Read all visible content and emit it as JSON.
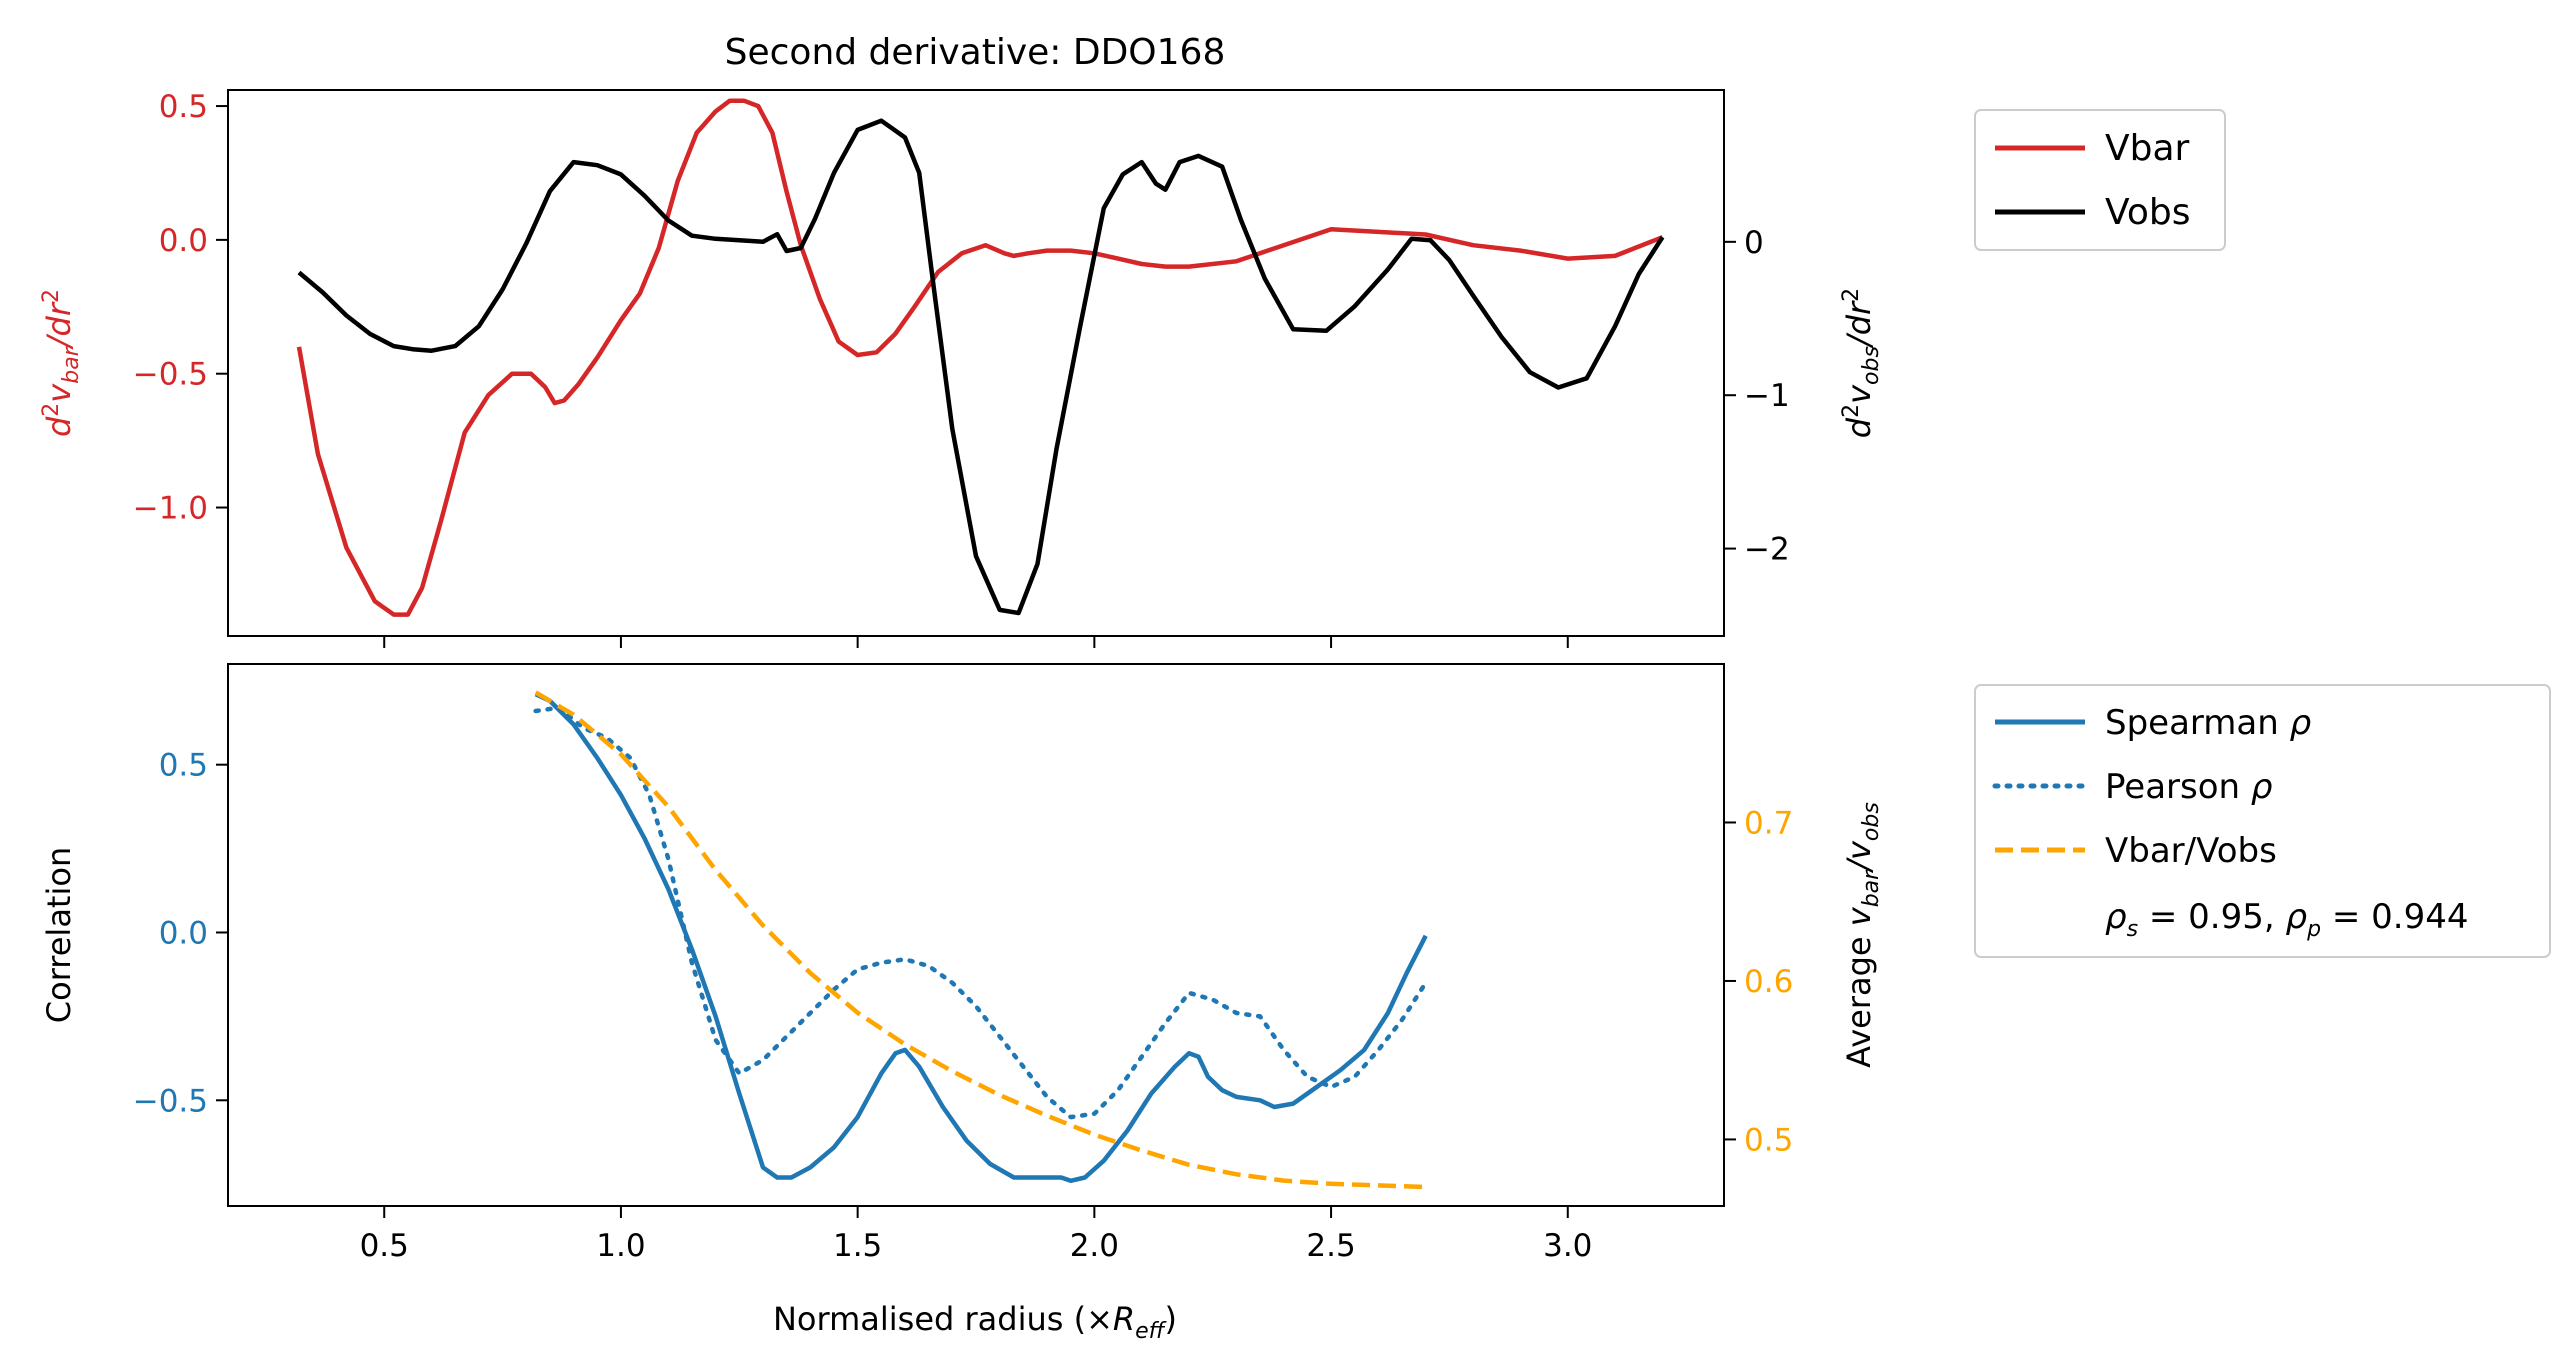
{
  "figure": {
    "title": "Second derivative: DDO168",
    "xlabel": "Normalised radius (×",
    "xlabel_sub": "R",
    "xlabel_subscript": "eff",
    "xlabel_close": ")",
    "colors": {
      "vbar": "#d62728",
      "vobs": "#000000",
      "spearman": "#1f77b4",
      "pearson": "#1f77b4",
      "ratio": "#ffa500",
      "axis": "#000000"
    }
  },
  "chart_data": [
    {
      "type": "line",
      "title": "Second derivative: DDO168",
      "xlim": [
        0.17,
        3.33
      ],
      "x_ticks": [
        0.5,
        1.0,
        1.5,
        2.0,
        2.5,
        3.0
      ],
      "left_axis": {
        "label": "d²v_bar/dr²",
        "color": "#d62728",
        "ylim": [
          -1.48,
          0.56
        ],
        "ticks": [
          0.5,
          0.0,
          -0.5,
          -1.0
        ],
        "tick_labels": [
          "0.5",
          "0.0",
          "−0.5",
          "−1.0"
        ]
      },
      "right_axis": {
        "label": "d²v_obs/dr²",
        "color": "#000000",
        "ylim": [
          -2.57,
          0.99
        ],
        "ticks": [
          0,
          -1,
          -2
        ],
        "tick_labels": [
          "0",
          "−1",
          "−2"
        ]
      },
      "legend": {
        "placement": "outside-top-right",
        "entries": [
          "Vbar",
          "Vobs"
        ]
      },
      "series": [
        {
          "name": "Vbar",
          "axis": "left",
          "color": "#d62728",
          "style": "solid",
          "x": [
            0.32,
            0.36,
            0.42,
            0.48,
            0.52,
            0.55,
            0.58,
            0.62,
            0.67,
            0.72,
            0.77,
            0.81,
            0.84,
            0.86,
            0.88,
            0.91,
            0.95,
            1.0,
            1.04,
            1.08,
            1.12,
            1.16,
            1.2,
            1.23,
            1.26,
            1.29,
            1.32,
            1.35,
            1.38,
            1.42,
            1.46,
            1.5,
            1.54,
            1.58,
            1.62,
            1.67,
            1.72,
            1.77,
            1.81,
            1.83,
            1.86,
            1.9,
            1.95,
            2.0,
            2.05,
            2.1,
            2.15,
            2.2,
            2.3,
            2.4,
            2.5,
            2.6,
            2.7,
            2.8,
            2.9,
            3.0,
            3.1,
            3.2
          ],
          "values": [
            -0.4,
            -0.8,
            -1.15,
            -1.35,
            -1.4,
            -1.4,
            -1.3,
            -1.05,
            -0.72,
            -0.58,
            -0.5,
            -0.5,
            -0.55,
            -0.61,
            -0.6,
            -0.54,
            -0.44,
            -0.3,
            -0.2,
            -0.03,
            0.22,
            0.4,
            0.48,
            0.52,
            0.52,
            0.5,
            0.4,
            0.18,
            -0.02,
            -0.22,
            -0.38,
            -0.43,
            -0.42,
            -0.35,
            -0.25,
            -0.12,
            -0.05,
            -0.02,
            -0.05,
            -0.06,
            -0.05,
            -0.04,
            -0.04,
            -0.05,
            -0.07,
            -0.09,
            -0.1,
            -0.1,
            -0.08,
            -0.02,
            0.04,
            0.03,
            0.02,
            -0.02,
            -0.04,
            -0.07,
            -0.06,
            0.01
          ]
        },
        {
          "name": "Vobs",
          "axis": "right",
          "color": "#000000",
          "style": "solid",
          "x": [
            0.32,
            0.37,
            0.42,
            0.47,
            0.52,
            0.56,
            0.6,
            0.65,
            0.7,
            0.75,
            0.8,
            0.85,
            0.9,
            0.95,
            1.0,
            1.05,
            1.1,
            1.15,
            1.2,
            1.25,
            1.3,
            1.33,
            1.35,
            1.38,
            1.41,
            1.45,
            1.5,
            1.55,
            1.6,
            1.63,
            1.66,
            1.7,
            1.75,
            1.8,
            1.84,
            1.88,
            1.92,
            1.97,
            2.02,
            2.06,
            2.1,
            2.13,
            2.15,
            2.18,
            2.22,
            2.27,
            2.31,
            2.36,
            2.42,
            2.49,
            2.55,
            2.62,
            2.67,
            2.71,
            2.75,
            2.8,
            2.86,
            2.92,
            2.98,
            3.04,
            3.1,
            3.15,
            3.2
          ],
          "values": [
            -0.2,
            -0.33,
            -0.48,
            -0.6,
            -0.68,
            -0.7,
            -0.71,
            -0.68,
            -0.55,
            -0.31,
            -0.01,
            0.33,
            0.52,
            0.5,
            0.44,
            0.3,
            0.14,
            0.04,
            0.02,
            0.01,
            0.0,
            0.05,
            -0.06,
            -0.04,
            0.15,
            0.45,
            0.73,
            0.79,
            0.68,
            0.45,
            -0.28,
            -1.22,
            -2.05,
            -2.4,
            -2.42,
            -2.1,
            -1.35,
            -0.55,
            0.22,
            0.44,
            0.52,
            0.38,
            0.34,
            0.52,
            0.56,
            0.49,
            0.14,
            -0.24,
            -0.57,
            -0.58,
            -0.42,
            -0.18,
            0.02,
            0.01,
            -0.12,
            -0.35,
            -0.62,
            -0.85,
            -0.95,
            -0.89,
            -0.55,
            -0.21,
            0.03
          ]
        }
      ]
    },
    {
      "type": "line",
      "xlim": [
        0.17,
        3.33
      ],
      "x_ticks": [
        0.5,
        1.0,
        1.5,
        2.0,
        2.5,
        3.0
      ],
      "x_tick_labels": [
        "0.5",
        "1.0",
        "1.5",
        "2.0",
        "2.5",
        "3.0"
      ],
      "left_axis": {
        "label": "Correlation",
        "color": "#1f77b4",
        "ylim": [
          -0.815,
          0.8
        ],
        "ticks": [
          0.5,
          0.0,
          -0.5
        ],
        "tick_labels": [
          "0.5",
          "0.0",
          "−0.5"
        ]
      },
      "right_axis": {
        "label": "Average v_bar/v_obs",
        "color": "#ffa500",
        "ylim": [
          0.458,
          0.8
        ],
        "ticks": [
          0.7,
          0.6,
          0.5
        ],
        "tick_labels": [
          "0.7",
          "0.6",
          "0.5"
        ]
      },
      "legend": {
        "placement": "outside-bottom-right",
        "entries": [
          "Spearman ρ",
          "Pearson ρ",
          "Vbar/Vobs"
        ],
        "annotation": "ρs = 0.95, ρp = 0.944"
      },
      "series": [
        {
          "name": "Spearman ρ",
          "axis": "left",
          "color": "#1f77b4",
          "style": "solid",
          "x": [
            0.82,
            0.85,
            0.9,
            0.95,
            1.0,
            1.05,
            1.1,
            1.15,
            1.2,
            1.25,
            1.3,
            1.33,
            1.36,
            1.4,
            1.45,
            1.5,
            1.55,
            1.58,
            1.6,
            1.63,
            1.68,
            1.73,
            1.78,
            1.83,
            1.87,
            1.9,
            1.93,
            1.95,
            1.98,
            2.02,
            2.07,
            2.12,
            2.17,
            2.2,
            2.22,
            2.24,
            2.27,
            2.3,
            2.35,
            2.38,
            2.42,
            2.47,
            2.52,
            2.57,
            2.62,
            2.66,
            2.7
          ],
          "values": [
            0.71,
            0.69,
            0.62,
            0.52,
            0.41,
            0.28,
            0.13,
            -0.05,
            -0.25,
            -0.48,
            -0.7,
            -0.73,
            -0.73,
            -0.7,
            -0.64,
            -0.55,
            -0.42,
            -0.36,
            -0.35,
            -0.4,
            -0.52,
            -0.62,
            -0.69,
            -0.73,
            -0.73,
            -0.73,
            -0.73,
            -0.74,
            -0.73,
            -0.68,
            -0.59,
            -0.48,
            -0.4,
            -0.36,
            -0.37,
            -0.43,
            -0.47,
            -0.49,
            -0.5,
            -0.52,
            -0.51,
            -0.46,
            -0.41,
            -0.35,
            -0.24,
            -0.12,
            -0.01
          ]
        },
        {
          "name": "Pearson ρ",
          "axis": "left",
          "color": "#1f77b4",
          "style": "dotted",
          "x": [
            0.82,
            0.87,
            0.92,
            0.97,
            1.02,
            1.06,
            1.1,
            1.15,
            1.2,
            1.25,
            1.3,
            1.35,
            1.4,
            1.45,
            1.5,
            1.55,
            1.6,
            1.65,
            1.7,
            1.75,
            1.8,
            1.85,
            1.9,
            1.95,
            2.0,
            2.05,
            2.1,
            2.15,
            2.2,
            2.25,
            2.3,
            2.35,
            2.4,
            2.45,
            2.5,
            2.55,
            2.6,
            2.65,
            2.7
          ],
          "values": [
            0.66,
            0.67,
            0.61,
            0.58,
            0.52,
            0.41,
            0.22,
            -0.09,
            -0.32,
            -0.42,
            -0.38,
            -0.31,
            -0.24,
            -0.17,
            -0.11,
            -0.09,
            -0.08,
            -0.1,
            -0.15,
            -0.22,
            -0.31,
            -0.4,
            -0.49,
            -0.55,
            -0.54,
            -0.47,
            -0.37,
            -0.27,
            -0.18,
            -0.2,
            -0.24,
            -0.25,
            -0.35,
            -0.43,
            -0.46,
            -0.43,
            -0.35,
            -0.26,
            -0.15
          ]
        },
        {
          "name": "Vbar/Vobs",
          "axis": "right",
          "color": "#ffa500",
          "style": "dashed",
          "x": [
            0.82,
            0.9,
            1.0,
            1.1,
            1.2,
            1.3,
            1.4,
            1.5,
            1.6,
            1.7,
            1.8,
            1.9,
            2.0,
            2.1,
            2.2,
            2.3,
            2.4,
            2.5,
            2.6,
            2.7
          ],
          "values": [
            0.782,
            0.768,
            0.743,
            0.71,
            0.67,
            0.635,
            0.605,
            0.58,
            0.56,
            0.543,
            0.528,
            0.515,
            0.503,
            0.493,
            0.484,
            0.478,
            0.474,
            0.472,
            0.471,
            0.47
          ]
        }
      ]
    }
  ]
}
